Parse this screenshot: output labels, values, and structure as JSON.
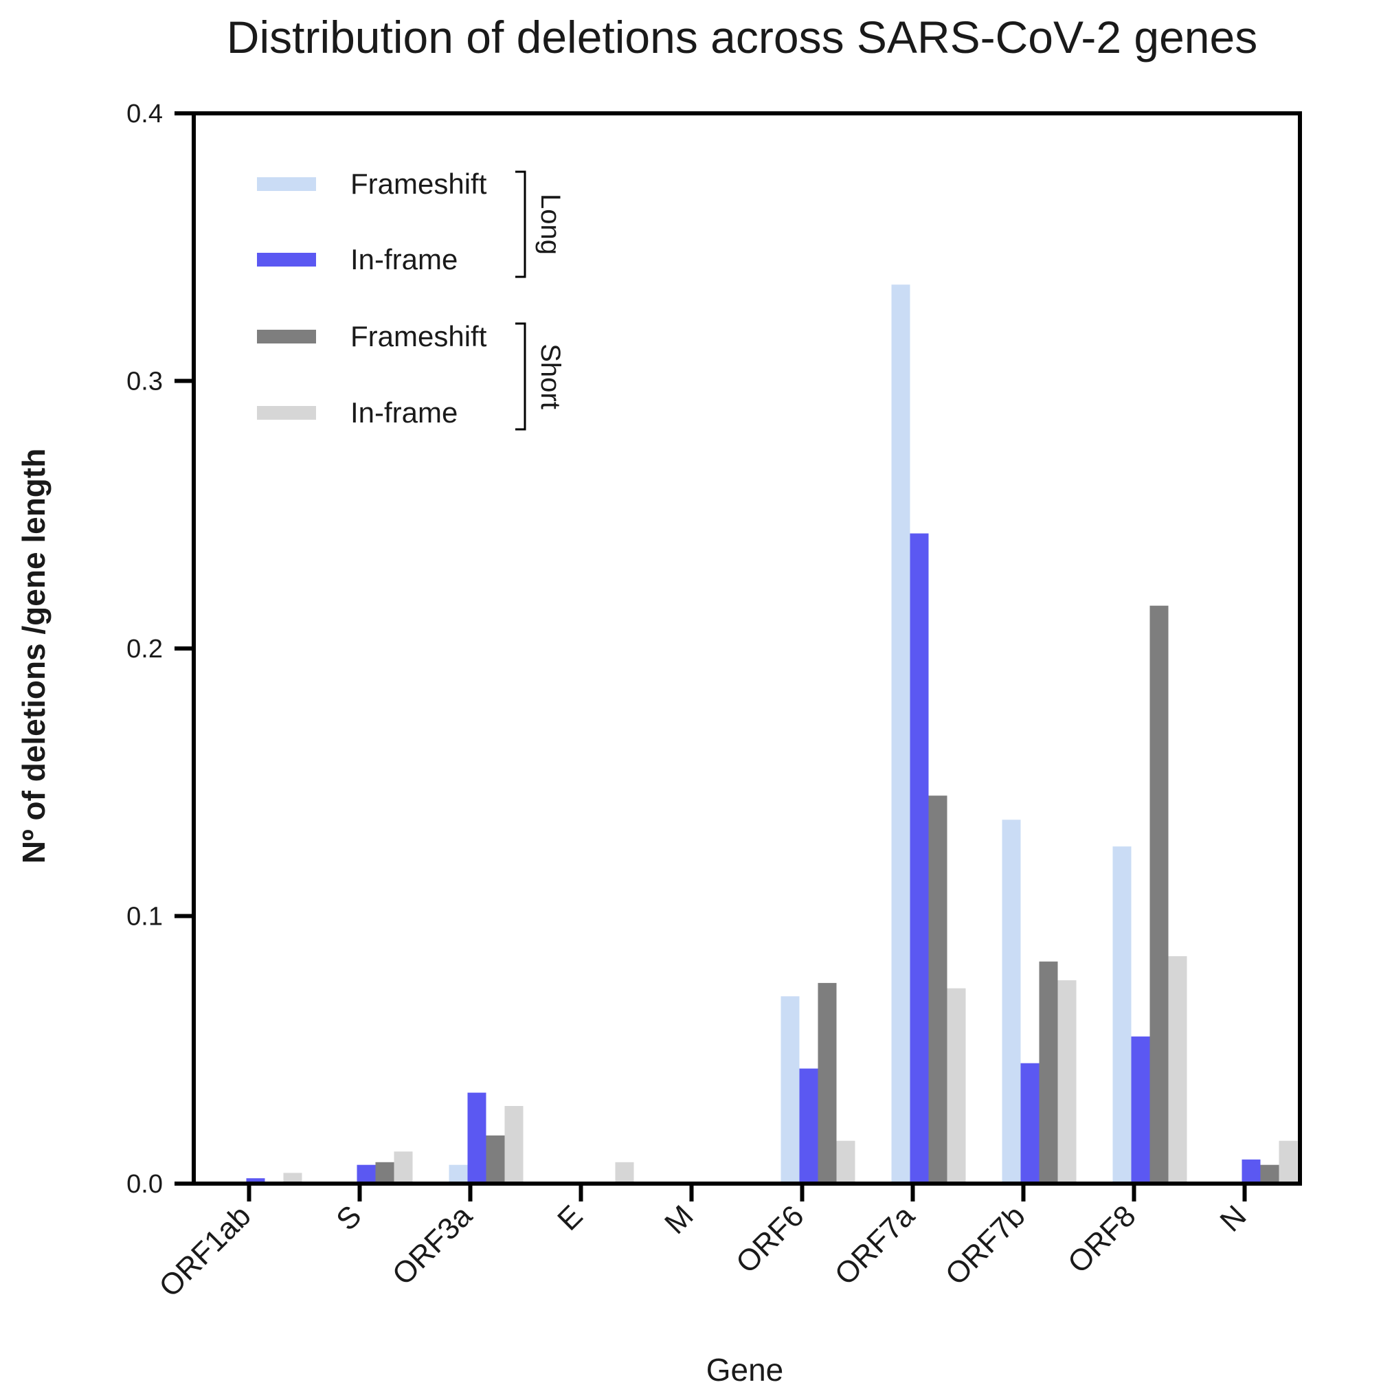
{
  "chart_data": {
    "type": "bar",
    "title": "Distribution of deletions across SARS-CoV-2 genes",
    "xlabel": "Gene",
    "ylabel": "Nº of deletions /gene length",
    "ylim": [
      0,
      0.4
    ],
    "yticks": [
      "0.0",
      "0.1",
      "0.2",
      "0.3",
      "0.4"
    ],
    "categories": [
      "ORF1ab",
      "S",
      "ORF3a",
      "E",
      "M",
      "ORF6",
      "ORF7a",
      "ORF7b",
      "ORF8",
      "N"
    ],
    "series": [
      {
        "name": "Frameshift",
        "group": "Long",
        "color": "#cadcf5",
        "values": [
          0.0,
          0.0,
          0.007,
          0.0,
          0.0,
          0.07,
          0.336,
          0.136,
          0.126,
          0.0
        ]
      },
      {
        "name": "In-frame",
        "group": "Long",
        "color": "#5b58f2",
        "values": [
          0.002,
          0.007,
          0.034,
          0.0,
          0.0,
          0.043,
          0.243,
          0.045,
          0.055,
          0.009
        ]
      },
      {
        "name": "Frameshift",
        "group": "Short",
        "color": "#7e7e7e",
        "values": [
          0.0,
          0.008,
          0.018,
          0.0,
          0.0,
          0.075,
          0.145,
          0.083,
          0.216,
          0.007
        ]
      },
      {
        "name": "In-frame",
        "group": "Short",
        "color": "#d6d6d6",
        "values": [
          0.004,
          0.012,
          0.029,
          0.008,
          0.0,
          0.016,
          0.073,
          0.076,
          0.085,
          0.016
        ]
      }
    ],
    "legend": {
      "placement": "top-left",
      "groups": [
        "Long",
        "Short"
      ]
    }
  }
}
